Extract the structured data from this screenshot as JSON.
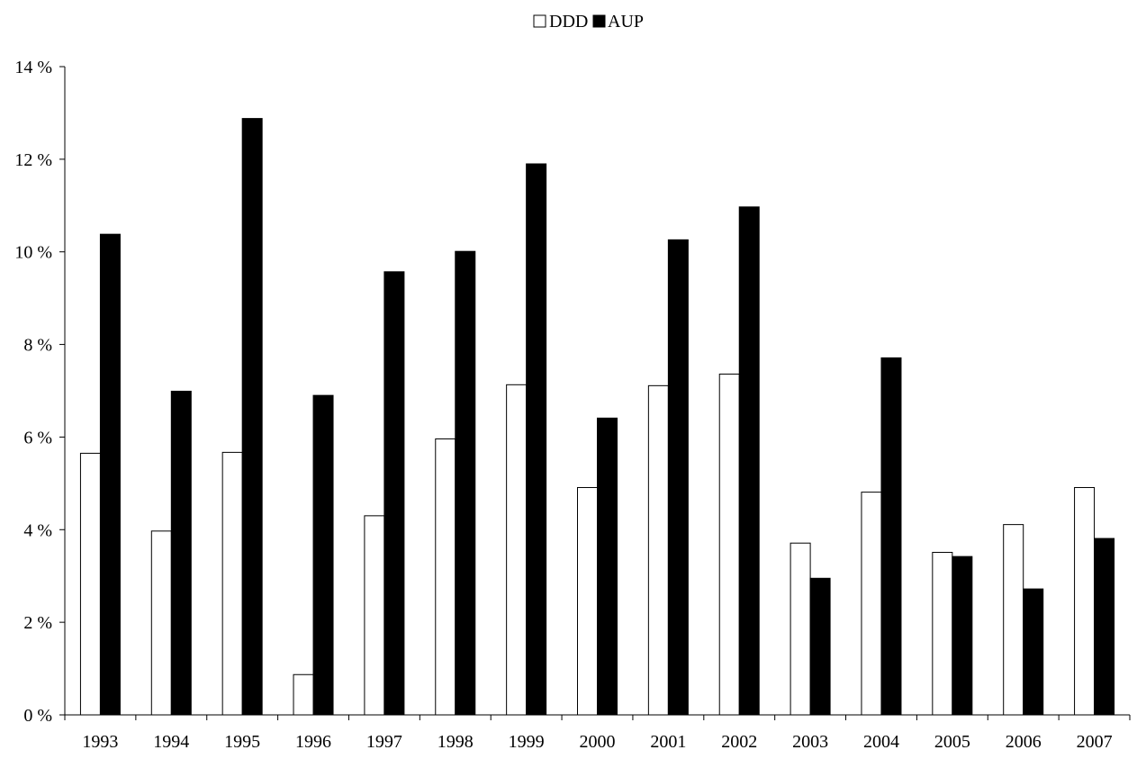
{
  "chart_data": {
    "type": "bar",
    "title": "",
    "xlabel": "",
    "ylabel": "",
    "categories": [
      "1993",
      "1994",
      "1995",
      "1996",
      "1997",
      "1998",
      "1999",
      "2000",
      "2001",
      "2002",
      "2003",
      "2004",
      "2005",
      "2006",
      "2007"
    ],
    "series": [
      {
        "name": "DDD",
        "color": "#ffffff",
        "stroke": "#000000",
        "values": [
          5.65,
          3.97,
          5.67,
          0.87,
          4.3,
          5.96,
          7.13,
          4.91,
          7.11,
          7.36,
          3.71,
          4.81,
          3.51,
          4.11,
          4.91
        ]
      },
      {
        "name": "AUP",
        "color": "#000000",
        "stroke": "#000000",
        "values": [
          10.38,
          6.99,
          12.88,
          6.9,
          9.57,
          10.01,
          11.9,
          6.41,
          10.26,
          10.97,
          2.95,
          7.71,
          3.42,
          2.72,
          3.81
        ]
      }
    ],
    "ylim": [
      0,
      14
    ],
    "ytick_values": [
      0,
      2,
      4,
      6,
      8,
      10,
      12,
      14
    ],
    "ytick_labels": [
      "0 %",
      "2 %",
      "4 %",
      "6 %",
      "8 %",
      "10 %",
      "12 %",
      "14 %"
    ],
    "grid": false,
    "legend_position": "top-center"
  }
}
